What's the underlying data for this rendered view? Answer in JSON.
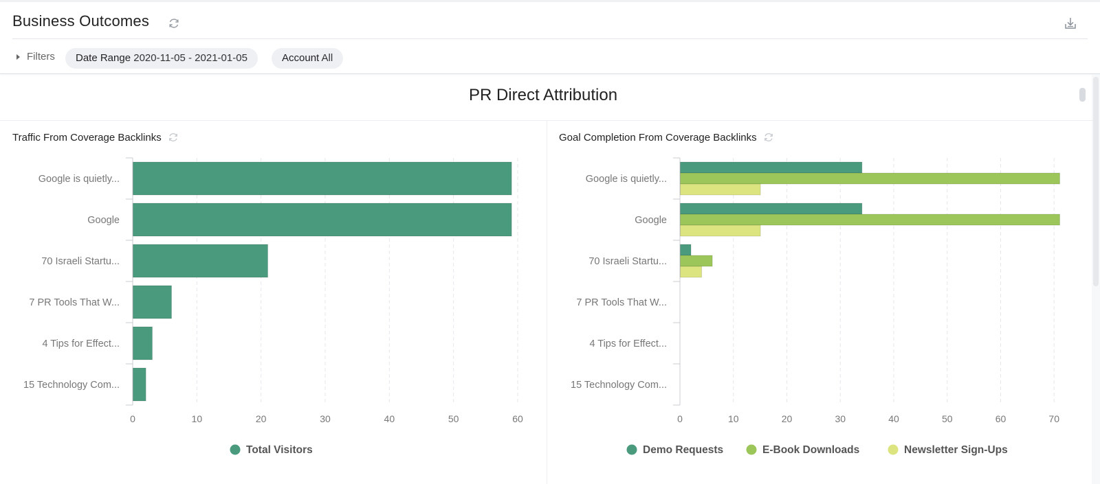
{
  "header": {
    "title": "Business Outcomes",
    "refresh_icon": "refresh-icon",
    "download_icon": "download-icon"
  },
  "filters": {
    "toggle_label": "Filters",
    "date_range": {
      "label": "Date Range",
      "value": "2020-11-05 - 2021-01-05"
    },
    "account": {
      "label": "Account",
      "value": "All"
    }
  },
  "section": {
    "title": "PR Direct Attribution"
  },
  "colors": {
    "demo": "#4a9a7e",
    "ebook": "#9dc65a",
    "newsletter": "#dbe47f",
    "grid": "#e5e7eb",
    "axis": "#c9ccd1"
  },
  "chart_data": [
    {
      "type": "bar",
      "orientation": "horizontal",
      "title": "Traffic From Coverage Backlinks",
      "categories": [
        "Google is quietly...",
        "Google",
        "70 Israeli Startu...",
        "7 PR Tools That W...",
        "4 Tips for Effect...",
        "15 Technology Com..."
      ],
      "series": [
        {
          "name": "Total Visitors",
          "values": [
            59,
            59,
            21,
            6,
            3,
            2
          ]
        }
      ],
      "xlim": [
        0,
        60
      ],
      "xticks": [
        0,
        10,
        20,
        30,
        40,
        50,
        60
      ],
      "grid": true,
      "legend": "bottom"
    },
    {
      "type": "bar",
      "orientation": "horizontal",
      "title": "Goal Completion From Coverage Backlinks",
      "categories": [
        "Google is quietly...",
        "Google",
        "70 Israeli Startu...",
        "7 PR Tools That W...",
        "4 Tips for Effect...",
        "15 Technology Com..."
      ],
      "series": [
        {
          "name": "Demo Requests",
          "values": [
            34,
            34,
            2,
            0,
            0,
            0
          ]
        },
        {
          "name": "E-Book Downloads",
          "values": [
            71,
            71,
            6,
            0,
            0,
            0
          ]
        },
        {
          "name": "Newsletter Sign-Ups",
          "values": [
            15,
            15,
            4,
            0,
            0,
            0
          ]
        }
      ],
      "xlim": [
        0,
        71
      ],
      "xticks": [
        0,
        10,
        20,
        30,
        40,
        50,
        60,
        70
      ],
      "grid": true,
      "legend": "bottom"
    }
  ]
}
